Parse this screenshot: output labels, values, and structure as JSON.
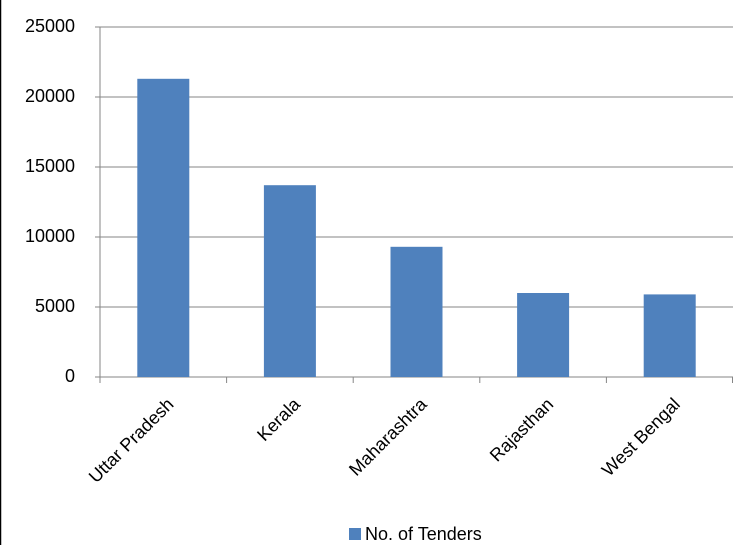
{
  "chart_data": {
    "type": "bar",
    "categories": [
      "Uttar Pradesh",
      "Kerala",
      "Maharashtra",
      "Rajasthan",
      "West Bengal"
    ],
    "series": [
      {
        "name": "No. of Tenders",
        "color": "#4f81bd",
        "values": [
          21300,
          13700,
          9300,
          6000,
          5900
        ]
      }
    ],
    "ylim": [
      0,
      25000
    ],
    "yticks": [
      0,
      5000,
      10000,
      15000,
      20000,
      25000
    ],
    "grid": true,
    "legend": "bottom"
  }
}
